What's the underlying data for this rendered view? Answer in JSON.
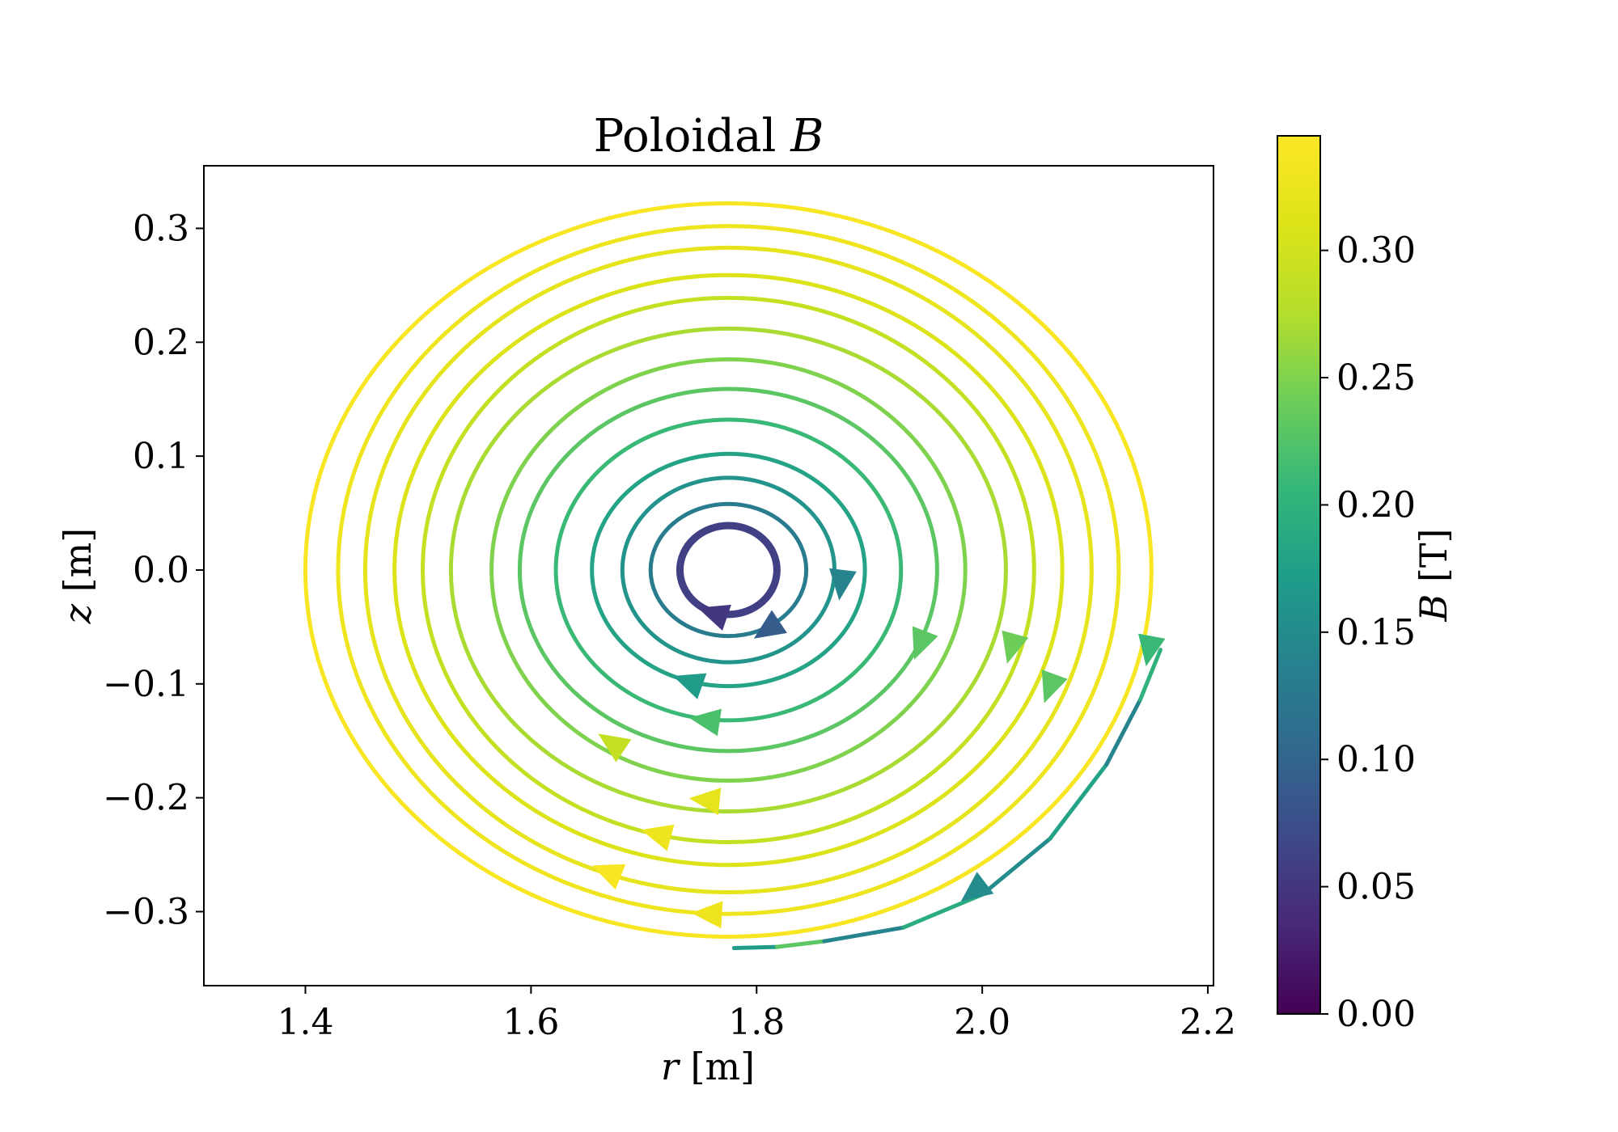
{
  "chart_data": {
    "type": "streamplot",
    "title": "Poloidal B",
    "title_parts": {
      "text": "Poloidal ",
      "math": "B"
    },
    "xlabel": "r [m]",
    "xlabel_parts": {
      "var": "r",
      "unit": " [m]"
    },
    "ylabel": "z [m]",
    "ylabel_parts": {
      "var": "z",
      "unit": " [m]"
    },
    "xlim": [
      1.31,
      2.205
    ],
    "ylim": [
      -0.365,
      0.355
    ],
    "xticks": [
      1.4,
      1.6,
      1.8,
      2.0,
      2.2
    ],
    "xtick_labels": [
      "1.4",
      "1.6",
      "1.8",
      "2.0",
      "2.2"
    ],
    "yticks": [
      0.3,
      0.2,
      0.1,
      0.0,
      -0.1,
      -0.2,
      -0.3
    ],
    "ytick_labels": [
      "0.3",
      "0.2",
      "0.1",
      "0.0",
      "−0.1",
      "−0.2",
      "−0.3"
    ],
    "grid": false,
    "center": [
      1.775,
      0.0
    ],
    "streamlines": [
      {
        "ry": 0.039,
        "rx": 0.043,
        "B": 0.06
      },
      {
        "ry": 0.058,
        "rx": 0.069,
        "B": 0.13
      },
      {
        "ry": 0.081,
        "rx": 0.094,
        "B": 0.16
      },
      {
        "ry": 0.102,
        "rx": 0.121,
        "B": 0.18
      },
      {
        "ry": 0.132,
        "rx": 0.153,
        "B": 0.21
      },
      {
        "ry": 0.159,
        "rx": 0.185,
        "B": 0.23
      },
      {
        "ry": 0.185,
        "rx": 0.21,
        "B": 0.25
      },
      {
        "ry": 0.212,
        "rx": 0.246,
        "B": 0.27
      },
      {
        "ry": 0.239,
        "rx": 0.271,
        "B": 0.29
      },
      {
        "ry": 0.259,
        "rx": 0.296,
        "B": 0.31
      },
      {
        "ry": 0.283,
        "rx": 0.322,
        "B": 0.32
      },
      {
        "ry": 0.302,
        "rx": 0.346,
        "B": 0.33
      },
      {
        "ry": 0.322,
        "rx": 0.375,
        "B": 0.34
      }
    ],
    "arrows": [
      {
        "r": 1.762,
        "z": -0.038,
        "B": 0.05
      },
      {
        "r": 1.81,
        "z": -0.052,
        "B": 0.09
      },
      {
        "r": 1.875,
        "z": -0.012,
        "B": 0.14
      },
      {
        "r": 1.74,
        "z": -0.098,
        "B": 0.17
      },
      {
        "r": 1.755,
        "z": -0.132,
        "B": 0.22
      },
      {
        "r": 1.945,
        "z": -0.065,
        "B": 0.23
      },
      {
        "r": 1.672,
        "z": -0.152,
        "B": 0.29
      },
      {
        "r": 2.026,
        "z": -0.068,
        "B": 0.24
      },
      {
        "r": 2.06,
        "z": -0.103,
        "B": 0.23
      },
      {
        "r": 2.148,
        "z": -0.07,
        "B": 0.21
      },
      {
        "r": 1.755,
        "z": -0.202,
        "B": 0.32
      },
      {
        "r": 1.712,
        "z": -0.232,
        "B": 0.33
      },
      {
        "r": 1.668,
        "z": -0.265,
        "B": 0.34
      },
      {
        "r": 1.757,
        "z": -0.302,
        "B": 0.33
      },
      {
        "r": 1.993,
        "z": -0.282,
        "B": 0.15
      }
    ],
    "open_streamline": {
      "r": [
        1.78,
        1.818,
        1.86,
        1.93,
        2.0,
        2.06,
        2.11,
        2.14,
        2.158
      ],
      "z": [
        -0.332,
        -0.331,
        -0.326,
        -0.314,
        -0.285,
        -0.236,
        -0.171,
        -0.114,
        -0.07
      ],
      "B": [
        0.17,
        0.23,
        0.14,
        0.19,
        0.15,
        0.18,
        0.14,
        0.2,
        0.17
      ]
    },
    "colorbar": {
      "label": "B [T]",
      "label_parts": {
        "var": "B",
        "unit": " [T]"
      },
      "colormap": "viridis",
      "range": [
        0.0,
        0.345
      ],
      "ticks": [
        0.0,
        0.05,
        0.1,
        0.15,
        0.2,
        0.25,
        0.3
      ],
      "tick_labels": [
        "0.00",
        "0.05",
        "0.10",
        "0.15",
        "0.20",
        "0.25",
        "0.30"
      ]
    }
  }
}
